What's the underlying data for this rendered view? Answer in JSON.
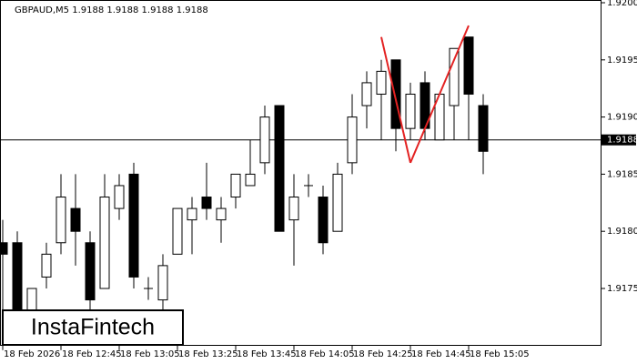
{
  "chart_data": {
    "type": "candlestick",
    "title": "GBPAUD,M5  1.9188 1.9188 1.9188 1.9188",
    "categories": [
      "18 Feb 2026",
      null,
      null,
      null,
      "18 Feb 12:45",
      null,
      null,
      null,
      "18 Feb 13:05",
      null,
      null,
      null,
      "18 Feb 13:25",
      null,
      null,
      null,
      "18 Feb 13:45",
      null,
      null,
      null,
      "18 Feb 14:05",
      null,
      null,
      null,
      "18 Feb 14:25",
      null,
      null,
      null,
      "18 Feb 14:45",
      null,
      null,
      null,
      "18 Feb 15:05",
      null
    ],
    "open": [
      1.9179,
      1.9179,
      1.9173,
      1.9176,
      1.9179,
      1.9182,
      1.9179,
      1.9175,
      1.9182,
      1.9185,
      1.9175,
      1.9174,
      1.9178,
      1.9181,
      1.9183,
      1.9181,
      1.9183,
      1.9184,
      1.9186,
      1.9191,
      1.9181,
      1.9184,
      1.9183,
      1.918,
      1.9186,
      1.9191,
      1.9192,
      1.9195,
      1.9189,
      1.9193,
      1.9188,
      1.9191,
      1.9197,
      1.9191
    ],
    "high": [
      1.9181,
      1.918,
      1.9175,
      1.9179,
      1.9185,
      1.9185,
      1.918,
      1.9185,
      1.9185,
      1.9186,
      1.9176,
      1.9178,
      1.9182,
      1.9183,
      1.9186,
      1.9183,
      1.9185,
      1.9188,
      1.9191,
      1.9191,
      1.9185,
      1.9185,
      1.9184,
      1.9186,
      1.9192,
      1.9194,
      1.9195,
      1.9195,
      1.9193,
      1.9194,
      1.9192,
      1.9196,
      1.9197,
      1.9192
    ],
    "low": [
      1.9173,
      1.9172,
      1.9172,
      1.9175,
      1.9178,
      1.9177,
      1.9173,
      1.9175,
      1.9181,
      1.9175,
      1.9174,
      1.9173,
      1.9178,
      1.9178,
      1.9181,
      1.9179,
      1.9182,
      1.9184,
      1.9185,
      1.918,
      1.9177,
      1.9183,
      1.9178,
      1.918,
      1.9185,
      1.9189,
      1.9188,
      1.9187,
      1.9188,
      1.9188,
      1.9188,
      1.9188,
      1.9188,
      1.9185
    ],
    "close": [
      1.9178,
      1.9173,
      1.9175,
      1.9178,
      1.9183,
      1.918,
      1.9174,
      1.9183,
      1.9184,
      1.9176,
      1.9175,
      1.9177,
      1.9182,
      1.9182,
      1.9182,
      1.9182,
      1.9185,
      1.9185,
      1.919,
      1.918,
      1.9183,
      1.9184,
      1.9179,
      1.9185,
      1.919,
      1.9193,
      1.9194,
      1.9189,
      1.9192,
      1.9189,
      1.9192,
      1.9196,
      1.9192,
      1.9187
    ],
    "up_color": "#ffffff",
    "down_color": "#000000",
    "ylim": [
      1.917,
      1.92
    ],
    "yticks": [
      {
        "value": 1.92,
        "label": "1.9200"
      },
      1.9195,
      {
        "value": 1.919,
        "label": "1.9190"
      },
      1.9185,
      {
        "value": 1.918,
        "label": "1.9180"
      },
      1.9175
    ],
    "current_price": 1.9188,
    "pattern": {
      "color": "#e32222",
      "values": [
        null,
        null,
        null,
        null,
        null,
        null,
        null,
        null,
        null,
        null,
        null,
        null,
        null,
        null,
        null,
        null,
        null,
        null,
        null,
        null,
        null,
        null,
        null,
        null,
        null,
        null,
        1.9197,
        null,
        1.9186,
        null,
        null,
        null,
        1.9198,
        null
      ]
    },
    "watermark": "InstaFintech"
  }
}
